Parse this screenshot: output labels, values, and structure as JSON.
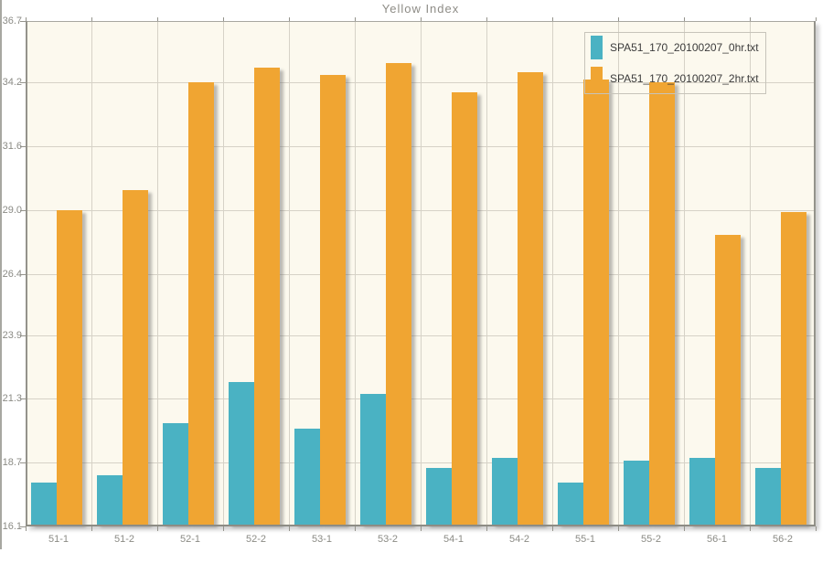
{
  "title": "Yellow Index",
  "colors": {
    "series_0hr": "#4ab2c3",
    "series_2hr": "#f0a532",
    "plot_background": "#fcf9ee",
    "gridline": "#d6d2c7",
    "axis_line": "#94938b",
    "tick_text": "#8b8b85",
    "legend_text": "#3b3b3b"
  },
  "chart_data": {
    "type": "bar",
    "title": "Yellow Index",
    "categories": [
      "51-1",
      "51-2",
      "52-1",
      "52-2",
      "53-1",
      "53-2",
      "54-1",
      "54-2",
      "55-1",
      "55-2",
      "56-1",
      "56-2"
    ],
    "series": [
      {
        "name": "SPA51_170_20100207_0hr.txt",
        "color": "#4ab2c3",
        "values": [
          17.9,
          18.2,
          20.3,
          22.0,
          20.1,
          21.5,
          18.5,
          18.9,
          17.9,
          18.8,
          18.9,
          18.5
        ]
      },
      {
        "name": "SPA51_170_20100207_2hr.txt",
        "color": "#f0a532",
        "values": [
          29.0,
          29.8,
          34.2,
          34.8,
          34.5,
          35.0,
          33.8,
          34.6,
          34.3,
          34.2,
          28.0,
          28.9
        ]
      }
    ],
    "ylim": [
      16.1,
      36.7
    ],
    "ytick_labels": [
      "16.1",
      "18.7",
      "21.3",
      "23.9",
      "26.4",
      "29.0",
      "31.6",
      "34.2",
      "36.7"
    ],
    "xlabel": "",
    "ylabel": "",
    "grid": true,
    "legend_position": "top-right"
  }
}
